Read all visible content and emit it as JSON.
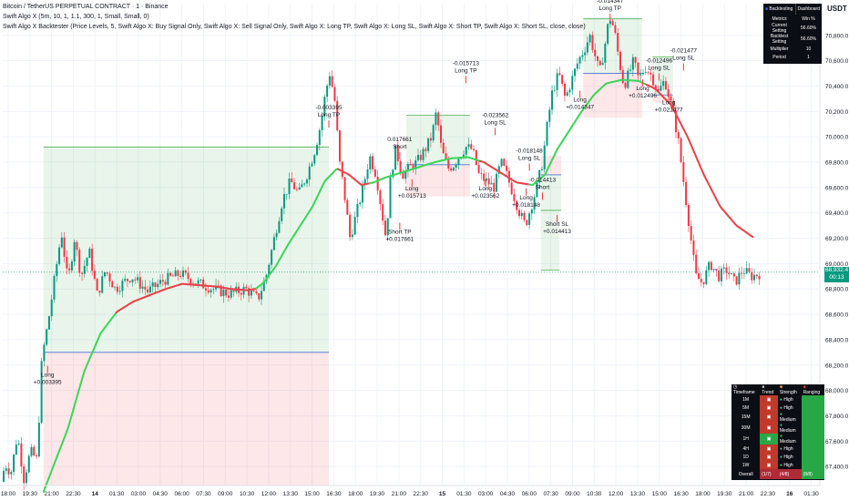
{
  "header": {
    "title": "Bitcoin / TetherUS PERPETUAL CONTRACT · 1 · Binance",
    "indicator1": "Swift Algo X (5m, 10, 1, 1.1, 300, 1, Small, Small, 0)",
    "indicator2": "Swift Algo X Backtester (Price Levels, 5, Swift Algo X: Buy Signal Only, Swift Algo X: Sell Signal Only, Swift Algo X: Long TP, Swift Algo X: Long SL, Swift Algo X: Short TP, Swift Algo X: Short SL, close, close)",
    "currency": "USDT"
  },
  "colors": {
    "up": "#089981",
    "down": "#f23645",
    "ema_bull": "#3dd65a",
    "ema_bear": "#e8434a",
    "tp_zone": "rgba(76,175,80,0.12)",
    "sl_zone": "rgba(242,54,69,0.12)",
    "entry_line": "#4a6fd6"
  },
  "price_tag": {
    "price": "68,932.4",
    "countdown": "00:13"
  },
  "backtest_panel": {
    "tab_backtesting": "Backtesting",
    "tab_dashboard": "Dashboard",
    "rows": [
      {
        "label": "Metrics",
        "value": "Win %"
      },
      {
        "label": "Current Setting",
        "value": "56.60%"
      },
      {
        "label": "Backtest Setting",
        "value": "56.60%"
      },
      {
        "label": "Multiplier",
        "value": "10"
      },
      {
        "label": "Period",
        "value": "1"
      }
    ]
  },
  "mtf_panel": {
    "headers": [
      "Timeframe",
      "Trend",
      "Strength",
      "Ranging"
    ],
    "rows": [
      {
        "tf": "1M",
        "strength": "High"
      },
      {
        "tf": "5M",
        "strength": "High"
      },
      {
        "tf": "15M",
        "strength": "Medium"
      },
      {
        "tf": "30M",
        "strength": "Medium"
      },
      {
        "tf": "1H",
        "strength": "Medium"
      },
      {
        "tf": "4H",
        "strength": "High"
      },
      {
        "tf": "1D",
        "strength": "High"
      },
      {
        "tf": "1W",
        "strength": "High"
      }
    ],
    "overall_label": "Overall",
    "overall_trend": "(1/7)",
    "overall_strength": "(4/8)",
    "overall_ranging": "(8/8)"
  },
  "chart_data": {
    "type": "candlestick",
    "title": "Bitcoin / TetherUS PERPETUAL CONTRACT · 1 · Binance",
    "ylim": [
      67250,
      71050
    ],
    "y_ticks": [
      "70,800.0",
      "70,600.0",
      "70,400.0",
      "70,200.0",
      "70,000.0",
      "69,800.0",
      "69,600.0",
      "69,400.0",
      "69,200.0",
      "69,000.0",
      "68,800.0",
      "68,600.0",
      "68,400.0",
      "68,200.0",
      "68,000.0",
      "67,800.0",
      "67,600.0",
      "67,400.0"
    ],
    "x_ticks": [
      "18:00",
      "19:30",
      "21:00",
      "22:30",
      "14",
      "01:30",
      "03:00",
      "04:30",
      "06:00",
      "07:30",
      "09:00",
      "10:30",
      "12:00",
      "13:30",
      "15:00",
      "16:30",
      "18:00",
      "19:30",
      "21:00",
      "22:30",
      "15",
      "01:30",
      "03:00",
      "04:30",
      "06:00",
      "07:30",
      "09:00",
      "10:30",
      "12:00",
      "13:30",
      "15:00",
      "16:30",
      "18:00",
      "19:30",
      "21:00",
      "22:30",
      "16",
      "01:30"
    ],
    "anchors": [
      [
        0.0,
        67280
      ],
      [
        0.005,
        67420
      ],
      [
        0.012,
        67350
      ],
      [
        0.02,
        67650
      ],
      [
        0.028,
        67300
      ],
      [
        0.036,
        67520
      ],
      [
        0.044,
        67450
      ],
      [
        0.05,
        68250
      ],
      [
        0.058,
        68550
      ],
      [
        0.066,
        68900
      ],
      [
        0.074,
        69250
      ],
      [
        0.082,
        68850
      ],
      [
        0.09,
        69200
      ],
      [
        0.098,
        68900
      ],
      [
        0.108,
        69100
      ],
      [
        0.118,
        68750
      ],
      [
        0.128,
        68950
      ],
      [
        0.14,
        68800
      ],
      [
        0.16,
        68900
      ],
      [
        0.18,
        68780
      ],
      [
        0.2,
        68870
      ],
      [
        0.22,
        68920
      ],
      [
        0.24,
        68850
      ],
      [
        0.26,
        68800
      ],
      [
        0.28,
        68760
      ],
      [
        0.3,
        68800
      ],
      [
        0.315,
        68720
      ],
      [
        0.325,
        68900
      ],
      [
        0.335,
        69200
      ],
      [
        0.345,
        69500
      ],
      [
        0.355,
        69650
      ],
      [
        0.365,
        69550
      ],
      [
        0.375,
        69700
      ],
      [
        0.385,
        69900
      ],
      [
        0.392,
        70100
      ],
      [
        0.398,
        70350
      ],
      [
        0.403,
        70500
      ],
      [
        0.409,
        70300
      ],
      [
        0.415,
        69800
      ],
      [
        0.42,
        69600
      ],
      [
        0.428,
        69200
      ],
      [
        0.436,
        69400
      ],
      [
        0.444,
        69600
      ],
      [
        0.452,
        69850
      ],
      [
        0.46,
        69700
      ],
      [
        0.466,
        69450
      ],
      [
        0.472,
        69200
      ],
      [
        0.478,
        69700
      ],
      [
        0.484,
        69900
      ],
      [
        0.492,
        69700
      ],
      [
        0.5,
        69750
      ],
      [
        0.51,
        69800
      ],
      [
        0.52,
        69900
      ],
      [
        0.528,
        70000
      ],
      [
        0.534,
        70200
      ],
      [
        0.54,
        69900
      ],
      [
        0.548,
        69750
      ],
      [
        0.555,
        69780
      ],
      [
        0.562,
        69850
      ],
      [
        0.57,
        69920
      ],
      [
        0.578,
        69900
      ],
      [
        0.586,
        69700
      ],
      [
        0.595,
        69650
      ],
      [
        0.605,
        69600
      ],
      [
        0.613,
        69800
      ],
      [
        0.62,
        69700
      ],
      [
        0.628,
        69550
      ],
      [
        0.636,
        69400
      ],
      [
        0.643,
        69300
      ],
      [
        0.65,
        69450
      ],
      [
        0.657,
        69600
      ],
      [
        0.664,
        69800
      ],
      [
        0.67,
        70100
      ],
      [
        0.676,
        70350
      ],
      [
        0.684,
        70500
      ],
      [
        0.692,
        70300
      ],
      [
        0.7,
        70450
      ],
      [
        0.708,
        70600
      ],
      [
        0.716,
        70700
      ],
      [
        0.722,
        70800
      ],
      [
        0.728,
        70650
      ],
      [
        0.734,
        70500
      ],
      [
        0.74,
        70700
      ],
      [
        0.746,
        70950
      ],
      [
        0.752,
        70850
      ],
      [
        0.758,
        70600
      ],
      [
        0.764,
        70400
      ],
      [
        0.77,
        70500
      ],
      [
        0.776,
        70600
      ],
      [
        0.782,
        70450
      ],
      [
        0.79,
        70550
      ],
      [
        0.798,
        70480
      ],
      [
        0.806,
        70350
      ],
      [
        0.814,
        70450
      ],
      [
        0.822,
        70250
      ],
      [
        0.83,
        70000
      ],
      [
        0.838,
        69600
      ],
      [
        0.846,
        69200
      ],
      [
        0.852,
        68900
      ],
      [
        0.86,
        68850
      ],
      [
        0.87,
        69000
      ],
      [
        0.88,
        68900
      ],
      [
        0.89,
        68950
      ],
      [
        0.9,
        68850
      ],
      [
        0.91,
        68950
      ],
      [
        0.92,
        68900
      ],
      [
        0.93,
        68920
      ]
    ],
    "ema_anchors": [
      [
        0.05,
        67200
      ],
      [
        0.08,
        67700
      ],
      [
        0.1,
        68150
      ],
      [
        0.12,
        68450
      ],
      [
        0.14,
        68620
      ],
      [
        0.16,
        68700
      ],
      [
        0.18,
        68750
      ],
      [
        0.2,
        68800
      ],
      [
        0.22,
        68840
      ],
      [
        0.24,
        68830
      ],
      [
        0.26,
        68820
      ],
      [
        0.28,
        68800
      ],
      [
        0.3,
        68790
      ],
      [
        0.31,
        68800
      ],
      [
        0.32,
        68850
      ],
      [
        0.335,
        68980
      ],
      [
        0.35,
        69150
      ],
      [
        0.365,
        69300
      ],
      [
        0.38,
        69450
      ],
      [
        0.395,
        69650
      ],
      [
        0.41,
        69750
      ],
      [
        0.425,
        69700
      ],
      [
        0.44,
        69620
      ],
      [
        0.455,
        69640
      ],
      [
        0.47,
        69680
      ],
      [
        0.49,
        69720
      ],
      [
        0.51,
        69760
      ],
      [
        0.53,
        69800
      ],
      [
        0.55,
        69830
      ],
      [
        0.57,
        69840
      ],
      [
        0.59,
        69800
      ],
      [
        0.61,
        69720
      ],
      [
        0.63,
        69640
      ],
      [
        0.65,
        69620
      ],
      [
        0.665,
        69700
      ],
      [
        0.68,
        69900
      ],
      [
        0.695,
        70050
      ],
      [
        0.71,
        70200
      ],
      [
        0.725,
        70330
      ],
      [
        0.74,
        70420
      ],
      [
        0.76,
        70450
      ],
      [
        0.78,
        70440
      ],
      [
        0.8,
        70380
      ],
      [
        0.82,
        70250
      ],
      [
        0.84,
        70000
      ],
      [
        0.86,
        69700
      ],
      [
        0.88,
        69450
      ],
      [
        0.9,
        69300
      ],
      [
        0.92,
        69210
      ]
    ],
    "ema_bear_ranges": [
      [
        0.14,
        0.31
      ],
      [
        0.41,
        0.45
      ],
      [
        0.585,
        0.645
      ],
      [
        0.79,
        0.93
      ]
    ],
    "zones": [
      {
        "x0": 0.05,
        "x1": 0.4,
        "entry": 68300,
        "tp": 69920,
        "sl": 67250,
        "kind": "long"
      },
      {
        "x0": 0.495,
        "x1": 0.573,
        "entry": 69780,
        "tp": 70170,
        "sl": 69530,
        "kind": "short"
      },
      {
        "x0": 0.712,
        "x1": 0.784,
        "entry": 70500,
        "tp": 70930,
        "sl": 70150,
        "kind": "long"
      },
      {
        "x0": 0.66,
        "x1": 0.685,
        "entry": 69700,
        "tp": 69420,
        "sl": 69850,
        "kind": "short"
      },
      {
        "x0": 0.797,
        "x1": 0.822,
        "entry": 70330,
        "tp": 70630,
        "sl": 70270,
        "kind": "long"
      },
      {
        "x0": 0.66,
        "x1": 0.683,
        "entry": 69420,
        "tp": 69300,
        "sl": 68950,
        "kind": "sl"
      }
    ],
    "labels": [
      {
        "x": 0.055,
        "price": 68150,
        "lines": [
          "Long",
          "+0.003395"
        ],
        "dir": "below"
      },
      {
        "x": 0.4,
        "price": 70130,
        "lines": [
          "-0.003395",
          "Long TP"
        ],
        "dir": "above"
      },
      {
        "x": 0.487,
        "price": 69880,
        "lines": [
          "0.017661",
          "Short"
        ],
        "dir": "above"
      },
      {
        "x": 0.487,
        "price": 69280,
        "lines": [
          "Short TP",
          "+0.017661"
        ],
        "dir": "below"
      },
      {
        "x": 0.502,
        "price": 69620,
        "lines": [
          "Long",
          "+0.015713"
        ],
        "dir": "below"
      },
      {
        "x": 0.568,
        "price": 70480,
        "lines": [
          "-0.015713",
          "Long TP"
        ],
        "dir": "above"
      },
      {
        "x": 0.592,
        "price": 69620,
        "lines": [
          "Long",
          "+0.023562"
        ],
        "dir": "below"
      },
      {
        "x": 0.604,
        "price": 70070,
        "lines": [
          "-0.023562",
          "Long SL"
        ],
        "dir": "above"
      },
      {
        "x": 0.642,
        "price": 69550,
        "lines": [
          "Long",
          "+0.018148"
        ],
        "dir": "below"
      },
      {
        "x": 0.646,
        "price": 69790,
        "lines": [
          "-0.018148",
          "Long SL"
        ],
        "dir": "above"
      },
      {
        "x": 0.662,
        "price": 69560,
        "lines": [
          "-0.014413",
          "Short"
        ],
        "dir": "above"
      },
      {
        "x": 0.68,
        "price": 69340,
        "lines": [
          "Short SL",
          "+0.014413"
        ],
        "dir": "below"
      },
      {
        "x": 0.708,
        "price": 70320,
        "lines": [
          "Long",
          "+0.014347"
        ],
        "dir": "below"
      },
      {
        "x": 0.745,
        "price": 70970,
        "lines": [
          "-0.014347",
          "Long TP"
        ],
        "dir": "above"
      },
      {
        "x": 0.785,
        "price": 70410,
        "lines": [
          "Long",
          "+0.012496"
        ],
        "dir": "below"
      },
      {
        "x": 0.805,
        "price": 70500,
        "lines": [
          "-0.012496",
          "Long SL"
        ],
        "dir": "above"
      },
      {
        "x": 0.817,
        "price": 70300,
        "lines": [
          "Long",
          "+0.021477"
        ],
        "dir": "below"
      },
      {
        "x": 0.835,
        "price": 70580,
        "lines": [
          "-0.021477",
          "Long SL"
        ],
        "dir": "above"
      }
    ]
  }
}
